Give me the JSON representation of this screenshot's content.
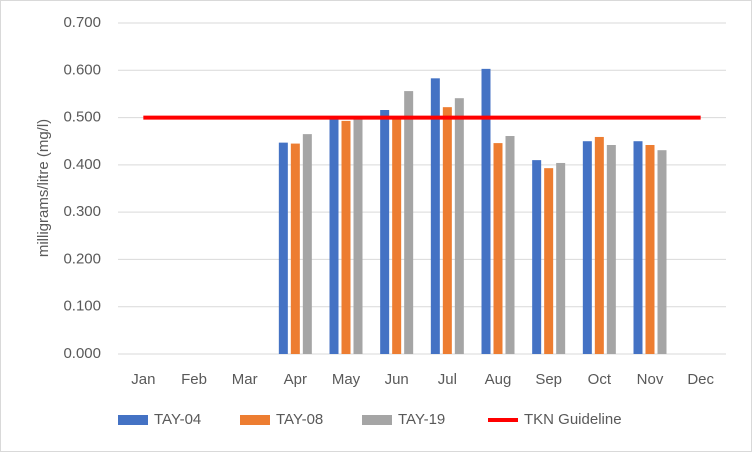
{
  "chart_data": {
    "type": "bar",
    "y_label": "milligrams/litre (mg/l)",
    "categories": [
      "Jan",
      "Feb",
      "Mar",
      "Apr",
      "May",
      "Jun",
      "Jul",
      "Aug",
      "Sep",
      "Oct",
      "Nov",
      "Dec"
    ],
    "series": [
      {
        "name": "TAY-04",
        "color": "#4472c4",
        "values": [
          null,
          null,
          null,
          0.447,
          0.501,
          0.516,
          0.583,
          0.603,
          0.41,
          0.45,
          0.45,
          null
        ]
      },
      {
        "name": "TAY-08",
        "color": "#ed7d31",
        "values": [
          null,
          null,
          null,
          0.445,
          0.493,
          0.503,
          0.522,
          0.446,
          0.393,
          0.459,
          0.442,
          null
        ]
      },
      {
        "name": "TAY-19",
        "color": "#a5a5a5",
        "values": [
          null,
          null,
          null,
          0.465,
          0.499,
          0.556,
          0.541,
          0.461,
          0.404,
          0.442,
          0.431,
          null
        ]
      },
      {
        "name": "TKN Guideline",
        "color": "#ff0000",
        "type": "line",
        "values": [
          0.5,
          0.5,
          0.5,
          0.5,
          0.5,
          0.5,
          0.5,
          0.5,
          0.5,
          0.5,
          0.5,
          0.5
        ]
      }
    ],
    "ylim": [
      0,
      0.7
    ],
    "yticks": [
      {
        "value": 0,
        "label": "0.000"
      },
      {
        "value": 0.1,
        "label": "0.100"
      },
      {
        "value": 0.2,
        "label": "0.200"
      },
      {
        "value": 0.3,
        "label": "0.300"
      },
      {
        "value": 0.4,
        "label": "0.400"
      },
      {
        "value": 0.5,
        "label": "0.500"
      },
      {
        "value": 0.6,
        "label": "0.600"
      },
      {
        "value": 0.7,
        "label": "0.700"
      }
    ],
    "grid": true,
    "legend": "bottom"
  }
}
